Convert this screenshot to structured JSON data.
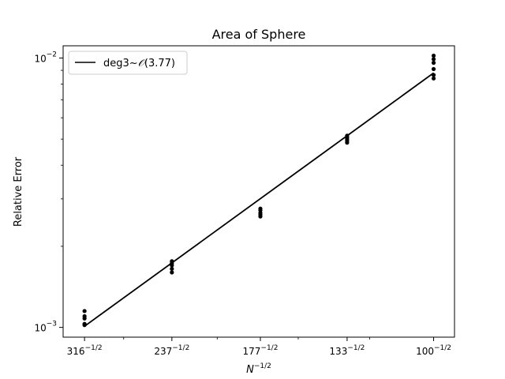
{
  "chart_data": {
    "type": "scatter",
    "title": "Area of Sphere",
    "xlabel": "N",
    "xlabel_exp": "−1/2",
    "ylabel": "Relative Error",
    "x_scale": "log",
    "y_scale": "log",
    "grid": false,
    "legend_position": "top-left",
    "xlim": [
      0.0543,
      0.1035
    ],
    "ylim": [
      0.00092,
      0.0111
    ],
    "x_ticks": [
      {
        "base": "316",
        "exp": "−1/2",
        "value": 0.05625
      },
      {
        "base": "237",
        "exp": "−1/2",
        "value": 0.06496
      },
      {
        "base": "177",
        "exp": "−1/2",
        "value": 0.07516
      },
      {
        "base": "133",
        "exp": "−1/2",
        "value": 0.08671
      },
      {
        "base": "100",
        "exp": "−1/2",
        "value": 0.1
      }
    ],
    "y_ticks": [
      {
        "base": "10",
        "exp": "−3",
        "value": 0.001
      },
      {
        "base": "10",
        "exp": "−2",
        "value": 0.01
      }
    ],
    "x_minor_ticks": [
      0.06,
      0.07,
      0.08,
      0.09
    ],
    "y_minor_ticks": [
      0.002,
      0.003,
      0.004,
      0.005,
      0.006,
      0.007,
      0.008,
      0.009
    ],
    "series": [
      {
        "name": "deg3",
        "label_suffix": "(3.77)",
        "type": "line",
        "color": "#000000",
        "x": [
          0.05625,
          0.1
        ],
        "y": [
          0.00101,
          0.0088
        ]
      },
      {
        "type": "scatter",
        "color": "#000000",
        "points": [
          [
            0.05625,
            0.00102
          ],
          [
            0.05625,
            0.00103
          ],
          [
            0.05625,
            0.00108
          ],
          [
            0.05625,
            0.0011
          ],
          [
            0.05625,
            0.00115
          ],
          [
            0.06496,
            0.0016
          ],
          [
            0.06496,
            0.00165
          ],
          [
            0.06496,
            0.0017
          ],
          [
            0.06496,
            0.00173
          ],
          [
            0.06496,
            0.00176
          ],
          [
            0.07516,
            0.00258
          ],
          [
            0.07516,
            0.00262
          ],
          [
            0.07516,
            0.00266
          ],
          [
            0.07516,
            0.00272
          ],
          [
            0.07516,
            0.00276
          ],
          [
            0.08671,
            0.00485
          ],
          [
            0.08671,
            0.00493
          ],
          [
            0.08671,
            0.005
          ],
          [
            0.08671,
            0.00508
          ],
          [
            0.08671,
            0.00515
          ],
          [
            0.1,
            0.0084
          ],
          [
            0.1,
            0.00865
          ],
          [
            0.1,
            0.0091
          ],
          [
            0.1,
            0.0096
          ],
          [
            0.1,
            0.0099
          ],
          [
            0.1,
            0.0102
          ]
        ]
      }
    ]
  }
}
